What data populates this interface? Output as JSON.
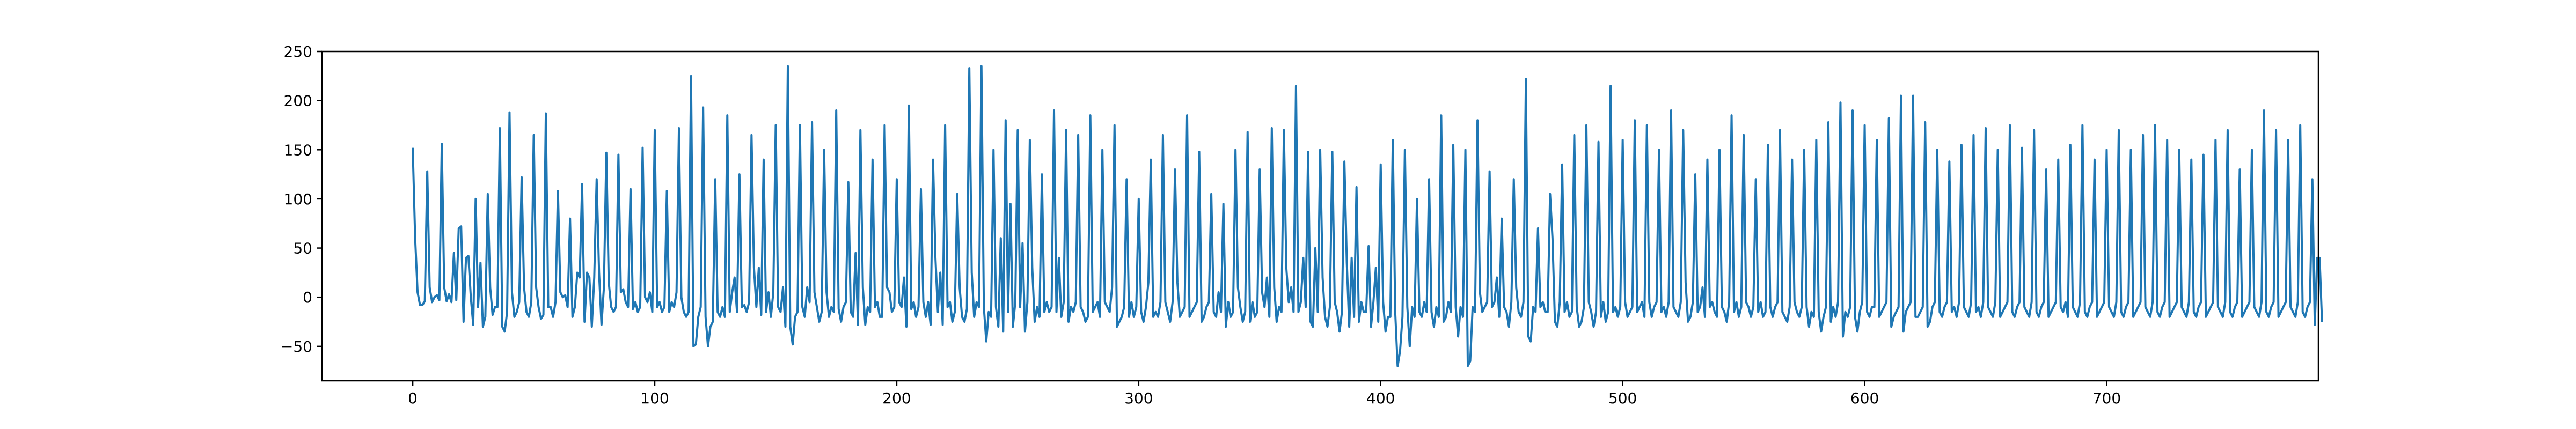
{
  "chart_data": {
    "type": "line",
    "title": "",
    "xlabel": "",
    "ylabel": "",
    "xlim": [
      -37.5,
      787.5
    ],
    "ylim": [
      -85,
      250
    ],
    "grid": false,
    "legend": "none",
    "x_ticks": [
      0,
      100,
      200,
      300,
      400,
      500,
      600,
      700
    ],
    "y_ticks": [
      -50,
      0,
      50,
      100,
      150,
      200,
      250
    ],
    "x_tick_labels": [
      "0",
      "100",
      "200",
      "300",
      "400",
      "500",
      "600",
      "700"
    ],
    "y_tick_labels": [
      "−50",
      "0",
      "50",
      "100",
      "150",
      "200",
      "250"
    ],
    "series": [
      {
        "color": "#1f77b4",
        "x_start": 0,
        "x_step": 1,
        "values": [
          152,
          60,
          5,
          -8,
          -8,
          -4,
          128,
          10,
          -5,
          0,
          2,
          -3,
          156,
          10,
          -4,
          3,
          -5,
          45,
          -3,
          70,
          72,
          -25,
          40,
          42,
          0,
          -28,
          100,
          -10,
          35,
          -30,
          -20,
          105,
          10,
          -18,
          -10,
          -10,
          172,
          -30,
          -35,
          -15,
          188,
          5,
          -20,
          -15,
          -5,
          122,
          10,
          -15,
          -20,
          -5,
          165,
          10,
          -10,
          -22,
          -18,
          187,
          -10,
          -10,
          -20,
          -5,
          108,
          5,
          0,
          2,
          -10,
          80,
          -20,
          -10,
          25,
          20,
          115,
          -25,
          25,
          20,
          -30,
          20,
          120,
          25,
          -28,
          10,
          147,
          15,
          -10,
          -15,
          -10,
          145,
          5,
          8,
          -5,
          -10,
          110,
          -12,
          -5,
          -15,
          -10,
          152,
          0,
          -5,
          5,
          -15,
          170,
          -10,
          -5,
          -15,
          -10,
          108,
          -15,
          -5,
          -10,
          5,
          172,
          0,
          -15,
          -20,
          -15,
          225,
          -50,
          -48,
          -20,
          -10,
          193,
          -20,
          -50,
          -30,
          -25,
          120,
          -15,
          -20,
          -10,
          -20,
          185,
          -15,
          5,
          20,
          -15,
          125,
          -10,
          -8,
          -15,
          -5,
          165,
          30,
          -10,
          30,
          -18,
          140,
          -15,
          5,
          -20,
          5,
          175,
          -10,
          -15,
          10,
          -30,
          235,
          -30,
          -48,
          -20,
          -15,
          175,
          -10,
          -20,
          10,
          -5,
          178,
          5,
          -10,
          -25,
          -15,
          150,
          5,
          -20,
          -10,
          -15,
          190,
          -12,
          -25,
          -10,
          -5,
          117,
          -15,
          -20,
          45,
          -28,
          170,
          10,
          -28,
          -10,
          -15,
          140,
          -10,
          -5,
          -20,
          -20,
          175,
          10,
          5,
          -15,
          -10,
          120,
          -5,
          -10,
          20,
          -30,
          195,
          -12,
          -5,
          -20,
          -10,
          110,
          -5,
          -20,
          -5,
          -28,
          140,
          40,
          -15,
          25,
          -28,
          175,
          -10,
          -5,
          -25,
          -15,
          105,
          10,
          -20,
          -25,
          -12,
          233,
          25,
          -20,
          -5,
          -10,
          235,
          -10,
          -45,
          -15,
          -20,
          150,
          -10,
          -30,
          60,
          -35,
          180,
          -15,
          95,
          -30,
          -5,
          170,
          -10,
          55,
          -35,
          -5,
          160,
          30,
          -25,
          -10,
          -20,
          125,
          -15,
          -5,
          -15,
          -10,
          190,
          -15,
          40,
          -20,
          -5,
          170,
          -25,
          -10,
          -15,
          -5,
          165,
          -10,
          -15,
          -25,
          -20,
          185,
          -15,
          -10,
          -5,
          -20,
          150,
          -5,
          -10,
          -15,
          10,
          175,
          -30,
          -25,
          -20,
          -10,
          120,
          -20,
          -5,
          -20,
          -10,
          100,
          -15,
          -25,
          -10,
          15,
          140,
          -20,
          -15,
          -20,
          -5,
          165,
          -5,
          -15,
          -25,
          -5,
          130,
          15,
          -20,
          -15,
          -10,
          185,
          -20,
          -15,
          -10,
          -5,
          148,
          -25,
          -20,
          -10,
          -5,
          105,
          -15,
          -20,
          5,
          -15,
          95,
          -30,
          -5,
          -20,
          -15,
          150,
          10,
          -10,
          -25,
          -15,
          168,
          -25,
          -5,
          -20,
          -15,
          130,
          5,
          -10,
          20,
          -20,
          172,
          10,
          -25,
          -10,
          -15,
          170,
          30,
          -5,
          10,
          -15,
          215,
          -15,
          -5,
          40,
          -10,
          148,
          -25,
          -30,
          50,
          -15,
          150,
          20,
          -20,
          -30,
          -10,
          148,
          -5,
          -15,
          -35,
          -15,
          138,
          35,
          -30,
          40,
          -20,
          112,
          -25,
          -5,
          -15,
          -15,
          52,
          -30,
          -5,
          30,
          -25,
          135,
          -5,
          -35,
          -20,
          -20,
          160,
          -15,
          -70,
          -55,
          -20,
          150,
          -10,
          -50,
          -10,
          -20,
          100,
          -15,
          -20,
          -5,
          -15,
          120,
          -15,
          -30,
          -10,
          -20,
          185,
          -25,
          -20,
          -5,
          -15,
          155,
          -10,
          -40,
          -10,
          -20,
          150,
          -70,
          -65,
          -10,
          -15,
          180,
          5,
          -15,
          -10,
          -5,
          128,
          -10,
          -5,
          20,
          -20,
          80,
          -10,
          -15,
          -30,
          -5,
          120,
          10,
          -15,
          -20,
          -5,
          222,
          -40,
          -45,
          -10,
          -15,
          70,
          -10,
          -5,
          -15,
          -15,
          105,
          60,
          -25,
          -30,
          -5,
          135,
          -15,
          -5,
          -20,
          -15,
          165,
          -10,
          -30,
          -25,
          -10,
          175,
          -5,
          -15,
          -30,
          -15,
          158,
          -20,
          -5,
          -25,
          -15,
          215,
          -15,
          -10,
          -20,
          -10,
          160,
          -5,
          -20,
          -15,
          -10,
          180,
          -15,
          -10,
          -5,
          -20,
          175,
          -5,
          -20,
          -10,
          -5,
          150,
          -15,
          -10,
          -20,
          -5,
          190,
          -10,
          -15,
          -20,
          -5,
          170,
          15,
          -25,
          -20,
          -5,
          125,
          -15,
          -10,
          10,
          -20,
          140,
          -10,
          -5,
          -15,
          -20,
          150,
          -10,
          -15,
          -25,
          -5,
          185,
          -15,
          -5,
          -20,
          -10,
          165,
          -5,
          -10,
          -20,
          -10,
          120,
          -15,
          -5,
          -20,
          -15,
          155,
          -10,
          -20,
          -10,
          -5,
          170,
          -15,
          -20,
          -25,
          -10,
          140,
          -5,
          -15,
          -20,
          -10,
          150,
          -10,
          -30,
          -15,
          -20,
          160,
          -15,
          -35,
          -20,
          -10,
          178,
          -25,
          -10,
          -20,
          -5,
          198,
          -40,
          -15,
          -20,
          -10,
          190,
          -20,
          -35,
          -15,
          -5,
          175,
          -15,
          -20,
          -10,
          -10,
          160,
          -20,
          -15,
          -10,
          -5,
          182,
          -30,
          -20,
          -15,
          -10,
          205,
          -35,
          -15,
          -10,
          -5,
          205,
          -20,
          -20,
          -15,
          -10,
          178,
          -30,
          -25,
          -10,
          -5,
          150,
          -15,
          -20,
          -10,
          -5,
          138,
          -15,
          -10,
          -20,
          -5,
          155,
          -10,
          -15,
          -20,
          -5,
          165,
          -15,
          -10,
          -20,
          -5,
          172,
          -10,
          -15,
          -20,
          -5,
          150,
          -20,
          -15,
          -10,
          -5,
          175,
          -15,
          -20,
          -10,
          -5,
          152,
          -10,
          -15,
          -20,
          -5,
          170,
          -15,
          -20,
          -10,
          -5,
          130,
          -20,
          -15,
          -10,
          -5,
          140,
          -10,
          -15,
          -5,
          -20,
          155,
          -10,
          -15,
          -20,
          -5,
          175,
          -15,
          -20,
          -10,
          -5,
          140,
          -20,
          -15,
          -10,
          -5,
          150,
          -10,
          -15,
          -20,
          -5,
          170,
          -15,
          -20,
          -10,
          -5,
          150,
          -20,
          -15,
          -10,
          -5,
          165,
          -10,
          -15,
          -20,
          -5,
          175,
          -15,
          -20,
          -10,
          -5,
          160,
          -20,
          -15,
          -10,
          -5,
          150,
          -10,
          -15,
          -20,
          -5,
          140,
          -15,
          -20,
          -10,
          -5,
          145,
          -20,
          -15,
          -10,
          -5,
          160,
          -10,
          -15,
          -20,
          -5,
          170,
          -15,
          -20,
          -10,
          -5,
          130,
          -20,
          -15,
          -10,
          -5,
          150,
          -10,
          -15,
          -20,
          -5,
          190,
          -15,
          -20,
          -10,
          -5,
          170,
          -20,
          -15,
          -10,
          -5,
          160,
          -10,
          -15,
          -20,
          -5,
          175,
          -15,
          -20,
          -10,
          -5,
          120,
          -28,
          40,
          40,
          -25
        ]
      }
    ]
  }
}
